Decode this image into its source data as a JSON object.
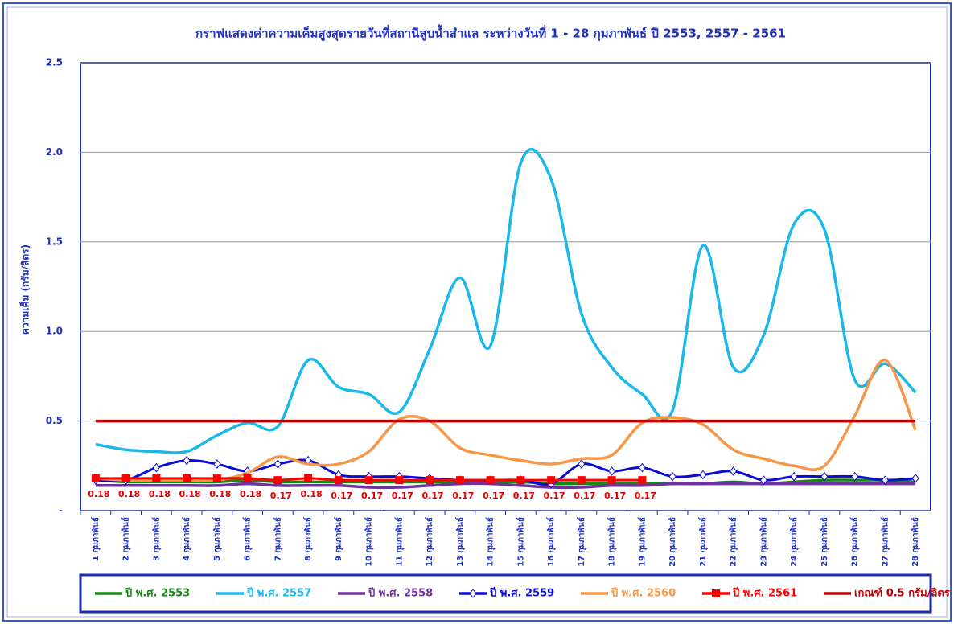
{
  "chart_data": {
    "type": "line",
    "title": "กราฟแสดงค่าความเค็มสูงสุดรายวันที่สถานีสูบน้ำสำแล ระหว่างวันที่ 1 - 28 กุมภาพันธ์ ปี 2553, 2557 - 2561",
    "y_label": "ความเค็ม (กรัม/ลิตร)",
    "categories": [
      "1 กุมภาพันธ์",
      "2 กุมภาพันธ์",
      "3 กุมภาพันธ์",
      "4 กุมภาพันธ์",
      "5 กุมภาพันธ์",
      "6 กุมภาพันธ์",
      "7 กุมภาพันธ์",
      "8 กุมภาพันธ์",
      "9 กุมภาพันธ์",
      "10 กุมภาพันธ์",
      "11 กุมภาพันธ์",
      "12 กุมภาพันธ์",
      "13 กุมภาพันธ์",
      "14 กุมภาพันธ์",
      "15 กุมภาพันธ์",
      "16 กุมภาพันธ์",
      "17 กุมภาพันธ์",
      "18 กุมภาพันธ์",
      "19 กุมภาพันธ์",
      "20 กุมภาพันธ์",
      "21 กุมภาพันธ์",
      "22 กุมภาพันธ์",
      "23 กุมภาพันธ์",
      "24 กุมภาพันธ์",
      "25 กุมภาพันธ์",
      "26 กุมภาพันธ์",
      "27 กุมภาพันธ์",
      "28 กุมภาพันธ์"
    ],
    "ylim": [
      0,
      2.5
    ],
    "yticks": [
      {
        "value": 0,
        "label": "-"
      },
      0.5,
      {
        "value": 1,
        "label": "1.0"
      },
      1.5,
      {
        "value": 2,
        "label": "2.0"
      },
      2.5
    ],
    "grid": true,
    "legend": "bottom",
    "series": [
      {
        "name": "ปี พ.ศ. 2553",
        "color": "#138a13",
        "values": [
          0.17,
          0.16,
          0.16,
          0.16,
          0.16,
          0.17,
          0.16,
          0.16,
          0.16,
          0.16,
          0.16,
          0.16,
          0.16,
          0.16,
          0.16,
          0.15,
          0.15,
          0.15,
          0.15,
          0.15,
          0.15,
          0.16,
          0.15,
          0.16,
          0.17,
          0.17,
          0.17,
          0.16
        ]
      },
      {
        "name": "ปี พ.ศ. 2557",
        "color": "#1ab8ea",
        "values": [
          0.37,
          0.34,
          0.33,
          0.33,
          0.42,
          0.49,
          0.47,
          0.84,
          0.69,
          0.65,
          0.55,
          0.9,
          1.3,
          0.92,
          1.94,
          1.85,
          1.1,
          0.8,
          0.65,
          0.56,
          1.48,
          0.8,
          0.98,
          1.6,
          1.57,
          0.73,
          0.82,
          0.66
        ]
      },
      {
        "name": "ปี พ.ศ. 2558",
        "color": "#7030a0",
        "values": [
          0.14,
          0.14,
          0.14,
          0.14,
          0.14,
          0.15,
          0.14,
          0.14,
          0.14,
          0.13,
          0.13,
          0.14,
          0.15,
          0.15,
          0.14,
          0.13,
          0.13,
          0.14,
          0.14,
          0.15,
          0.15,
          0.15,
          0.15,
          0.15,
          0.15,
          0.15,
          0.15,
          0.15
        ]
      },
      {
        "name": "ปี พ.ศ. 2559",
        "color": "#0a0ad8",
        "marker": "diamond",
        "values": [
          0.17,
          0.17,
          0.24,
          0.28,
          0.26,
          0.22,
          0.26,
          0.28,
          0.2,
          0.19,
          0.19,
          0.18,
          0.17,
          0.17,
          0.17,
          0.15,
          0.26,
          0.22,
          0.24,
          0.19,
          0.2,
          0.22,
          0.17,
          0.19,
          0.19,
          0.19,
          0.17,
          0.18
        ]
      },
      {
        "name": "ปี พ.ศ. 2560",
        "color": "#f79646",
        "values": [
          0.18,
          0.17,
          0.17,
          0.17,
          0.17,
          0.21,
          0.3,
          0.26,
          0.26,
          0.33,
          0.51,
          0.5,
          0.35,
          0.31,
          0.28,
          0.26,
          0.29,
          0.31,
          0.49,
          0.52,
          0.48,
          0.34,
          0.29,
          0.25,
          0.25,
          0.53,
          0.84,
          0.45
        ]
      },
      {
        "name": "ปี พ.ศ. 2561",
        "color": "#ff0000",
        "marker": "square",
        "data_labels": true,
        "values": [
          0.18,
          0.18,
          0.18,
          0.18,
          0.18,
          0.18,
          0.17,
          0.18,
          0.17,
          0.17,
          0.17,
          0.17,
          0.17,
          0.17,
          0.17,
          0.17,
          0.17,
          0.17,
          0.17,
          null,
          null,
          null,
          null,
          null,
          null,
          null,
          null,
          null
        ]
      },
      {
        "name": "เกณฑ์ 0.5 กรัม/ลิตร",
        "color": "#c00000",
        "values": [
          0.5,
          0.5,
          0.5,
          0.5,
          0.5,
          0.5,
          0.5,
          0.5,
          0.5,
          0.5,
          0.5,
          0.5,
          0.5,
          0.5,
          0.5,
          0.5,
          0.5,
          0.5,
          0.5,
          0.5,
          0.5,
          0.5,
          0.5,
          0.5,
          0.5,
          0.5,
          0.5,
          0.5
        ]
      }
    ]
  }
}
